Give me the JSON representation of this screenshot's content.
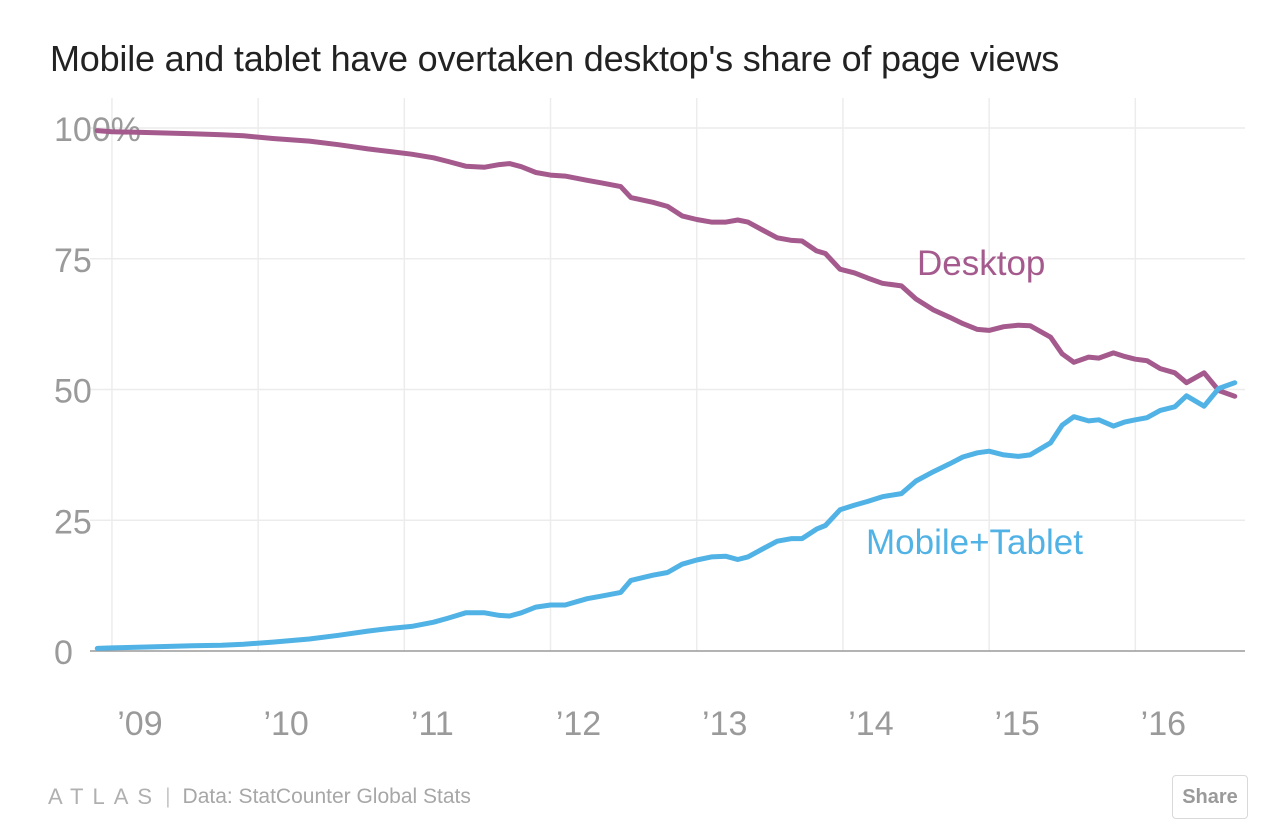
{
  "chart_data": {
    "type": "line",
    "title": "Mobile and tablet have overtaken desktop's share of page views",
    "xlabel": "",
    "ylabel": "",
    "ylim": [
      0,
      100
    ],
    "xlim": [
      2008.85,
      2016.75
    ],
    "y_ticks": [
      0,
      25,
      50,
      75,
      100
    ],
    "y_tick_labels": [
      "0",
      "25",
      "50",
      "75",
      "100%"
    ],
    "x_ticks": [
      2009,
      2010,
      2011,
      2012,
      2013,
      2014,
      2015,
      2016
    ],
    "x_tick_labels": [
      "’09",
      "’10",
      "’11",
      "’12",
      "’13",
      "’14",
      "’15",
      "’16"
    ],
    "grid": true,
    "series": [
      {
        "name": "Desktop",
        "color": "#a55a8d",
        "x": [
          2008.9,
          2009.0,
          2009.3,
          2009.55,
          2009.75,
          2009.9,
          2010.1,
          2010.35,
          2010.55,
          2010.75,
          2010.9,
          2011.05,
          2011.2,
          2011.3,
          2011.42,
          2011.55,
          2011.65,
          2011.72,
          2011.8,
          2011.9,
          2012.0,
          2012.1,
          2012.25,
          2012.35,
          2012.48,
          2012.55,
          2012.7,
          2012.8,
          2012.9,
          2013.0,
          2013.1,
          2013.2,
          2013.28,
          2013.35,
          2013.45,
          2013.55,
          2013.65,
          2013.72,
          2013.82,
          2013.88,
          2013.98,
          2014.08,
          2014.17,
          2014.27,
          2014.4,
          2014.5,
          2014.62,
          2014.73,
          2014.82,
          2014.92,
          2015.0,
          2015.1,
          2015.2,
          2015.28,
          2015.42,
          2015.5,
          2015.58,
          2015.68,
          2015.75,
          2015.85,
          2015.93,
          2016.0,
          2016.08,
          2016.17,
          2016.27,
          2016.35,
          2016.47,
          2016.57,
          2016.68
        ],
        "values": [
          99.5,
          99.3,
          99.1,
          98.9,
          98.7,
          98.5,
          98.0,
          97.5,
          96.8,
          96.0,
          95.5,
          95.0,
          94.3,
          93.6,
          92.7,
          92.5,
          93.0,
          93.2,
          92.6,
          91.5,
          91.0,
          90.8,
          90.0,
          89.5,
          88.8,
          86.7,
          85.8,
          85.0,
          83.2,
          82.5,
          82.0,
          82.0,
          82.4,
          82.0,
          80.5,
          79.0,
          78.5,
          78.4,
          76.5,
          76.0,
          73.0,
          72.3,
          71.3,
          70.3,
          69.8,
          67.3,
          65.2,
          63.8,
          62.6,
          61.5,
          61.3,
          62.0,
          62.3,
          62.2,
          60.0,
          56.8,
          55.2,
          56.2,
          56.0,
          57.0,
          56.3,
          55.8,
          55.5,
          54.0,
          53.2,
          51.3,
          53.2,
          49.8,
          48.7
        ]
      },
      {
        "name": "Mobile+Tablet",
        "color": "#51b2e5",
        "x": [
          2008.9,
          2009.0,
          2009.3,
          2009.55,
          2009.75,
          2009.9,
          2010.1,
          2010.35,
          2010.55,
          2010.75,
          2010.9,
          2011.05,
          2011.2,
          2011.3,
          2011.42,
          2011.55,
          2011.65,
          2011.72,
          2011.8,
          2011.9,
          2012.0,
          2012.1,
          2012.25,
          2012.35,
          2012.48,
          2012.55,
          2012.7,
          2012.8,
          2012.9,
          2013.0,
          2013.1,
          2013.2,
          2013.28,
          2013.35,
          2013.45,
          2013.55,
          2013.65,
          2013.72,
          2013.82,
          2013.88,
          2013.98,
          2014.08,
          2014.17,
          2014.27,
          2014.4,
          2014.5,
          2014.62,
          2014.73,
          2014.82,
          2014.92,
          2015.0,
          2015.1,
          2015.2,
          2015.28,
          2015.42,
          2015.5,
          2015.58,
          2015.68,
          2015.75,
          2015.85,
          2015.93,
          2016.0,
          2016.08,
          2016.17,
          2016.27,
          2016.35,
          2016.47,
          2016.57,
          2016.68
        ],
        "values": [
          0.5,
          0.6,
          0.8,
          1.0,
          1.1,
          1.3,
          1.7,
          2.3,
          3.0,
          3.8,
          4.3,
          4.7,
          5.5,
          6.3,
          7.3,
          7.3,
          6.8,
          6.7,
          7.3,
          8.4,
          8.8,
          8.8,
          10.0,
          10.5,
          11.2,
          13.5,
          14.5,
          15.0,
          16.6,
          17.4,
          18.0,
          18.1,
          17.5,
          18.0,
          19.5,
          21.0,
          21.5,
          21.5,
          23.3,
          24.0,
          27.0,
          27.9,
          28.6,
          29.5,
          30.1,
          32.5,
          34.3,
          35.8,
          37.1,
          37.9,
          38.2,
          37.5,
          37.2,
          37.5,
          39.8,
          43.2,
          44.8,
          44.0,
          44.2,
          43.0,
          43.8,
          44.2,
          44.6,
          46.0,
          46.7,
          48.8,
          46.8,
          50.2,
          51.3
        ]
      }
    ],
    "annotations": [
      {
        "text": "Desktop",
        "series": "Desktop"
      },
      {
        "text": "Mobile+Tablet",
        "series": "Mobile+Tablet"
      }
    ]
  },
  "footer": {
    "brand": "ATLAS",
    "source": "Data: StatCounter Global Stats",
    "share_label": "Share"
  }
}
